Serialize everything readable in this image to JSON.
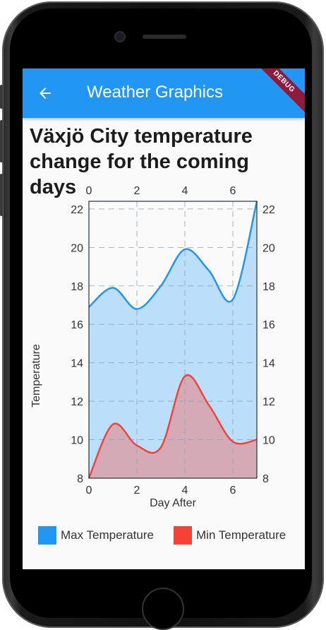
{
  "app_bar": {
    "title": "Weather Graphics",
    "back_icon": "arrow-back-icon",
    "debug_label": "DEBUG",
    "color": "#2196f3"
  },
  "heading": "Växjö City temperature change for the coming days",
  "chart_data": {
    "type": "area",
    "xlabel": "Day After",
    "ylabel": "Temperature",
    "xlim": [
      0,
      7
    ],
    "ylim": [
      8,
      22.4
    ],
    "x_ticks": [
      0,
      2,
      4,
      6
    ],
    "y_ticks": [
      8,
      10,
      12,
      14,
      16,
      18,
      20,
      22
    ],
    "grid": true,
    "legend_position": "bottom",
    "series": [
      {
        "name": "Max Temperature",
        "color": "#2196f3",
        "fill": "#bbdefb",
        "x": [
          0,
          1,
          2,
          3,
          4,
          5,
          6,
          7
        ],
        "values": [
          16.9,
          17.9,
          16.8,
          18.0,
          19.9,
          18.8,
          17.3,
          22.4
        ]
      },
      {
        "name": "Min Temperature",
        "color": "#f44336",
        "fill": "#d4aab6",
        "x": [
          0,
          1,
          2,
          3,
          4,
          5,
          6,
          7
        ],
        "values": [
          8.0,
          10.8,
          9.7,
          9.6,
          13.3,
          11.8,
          9.9,
          10.0
        ]
      }
    ]
  }
}
